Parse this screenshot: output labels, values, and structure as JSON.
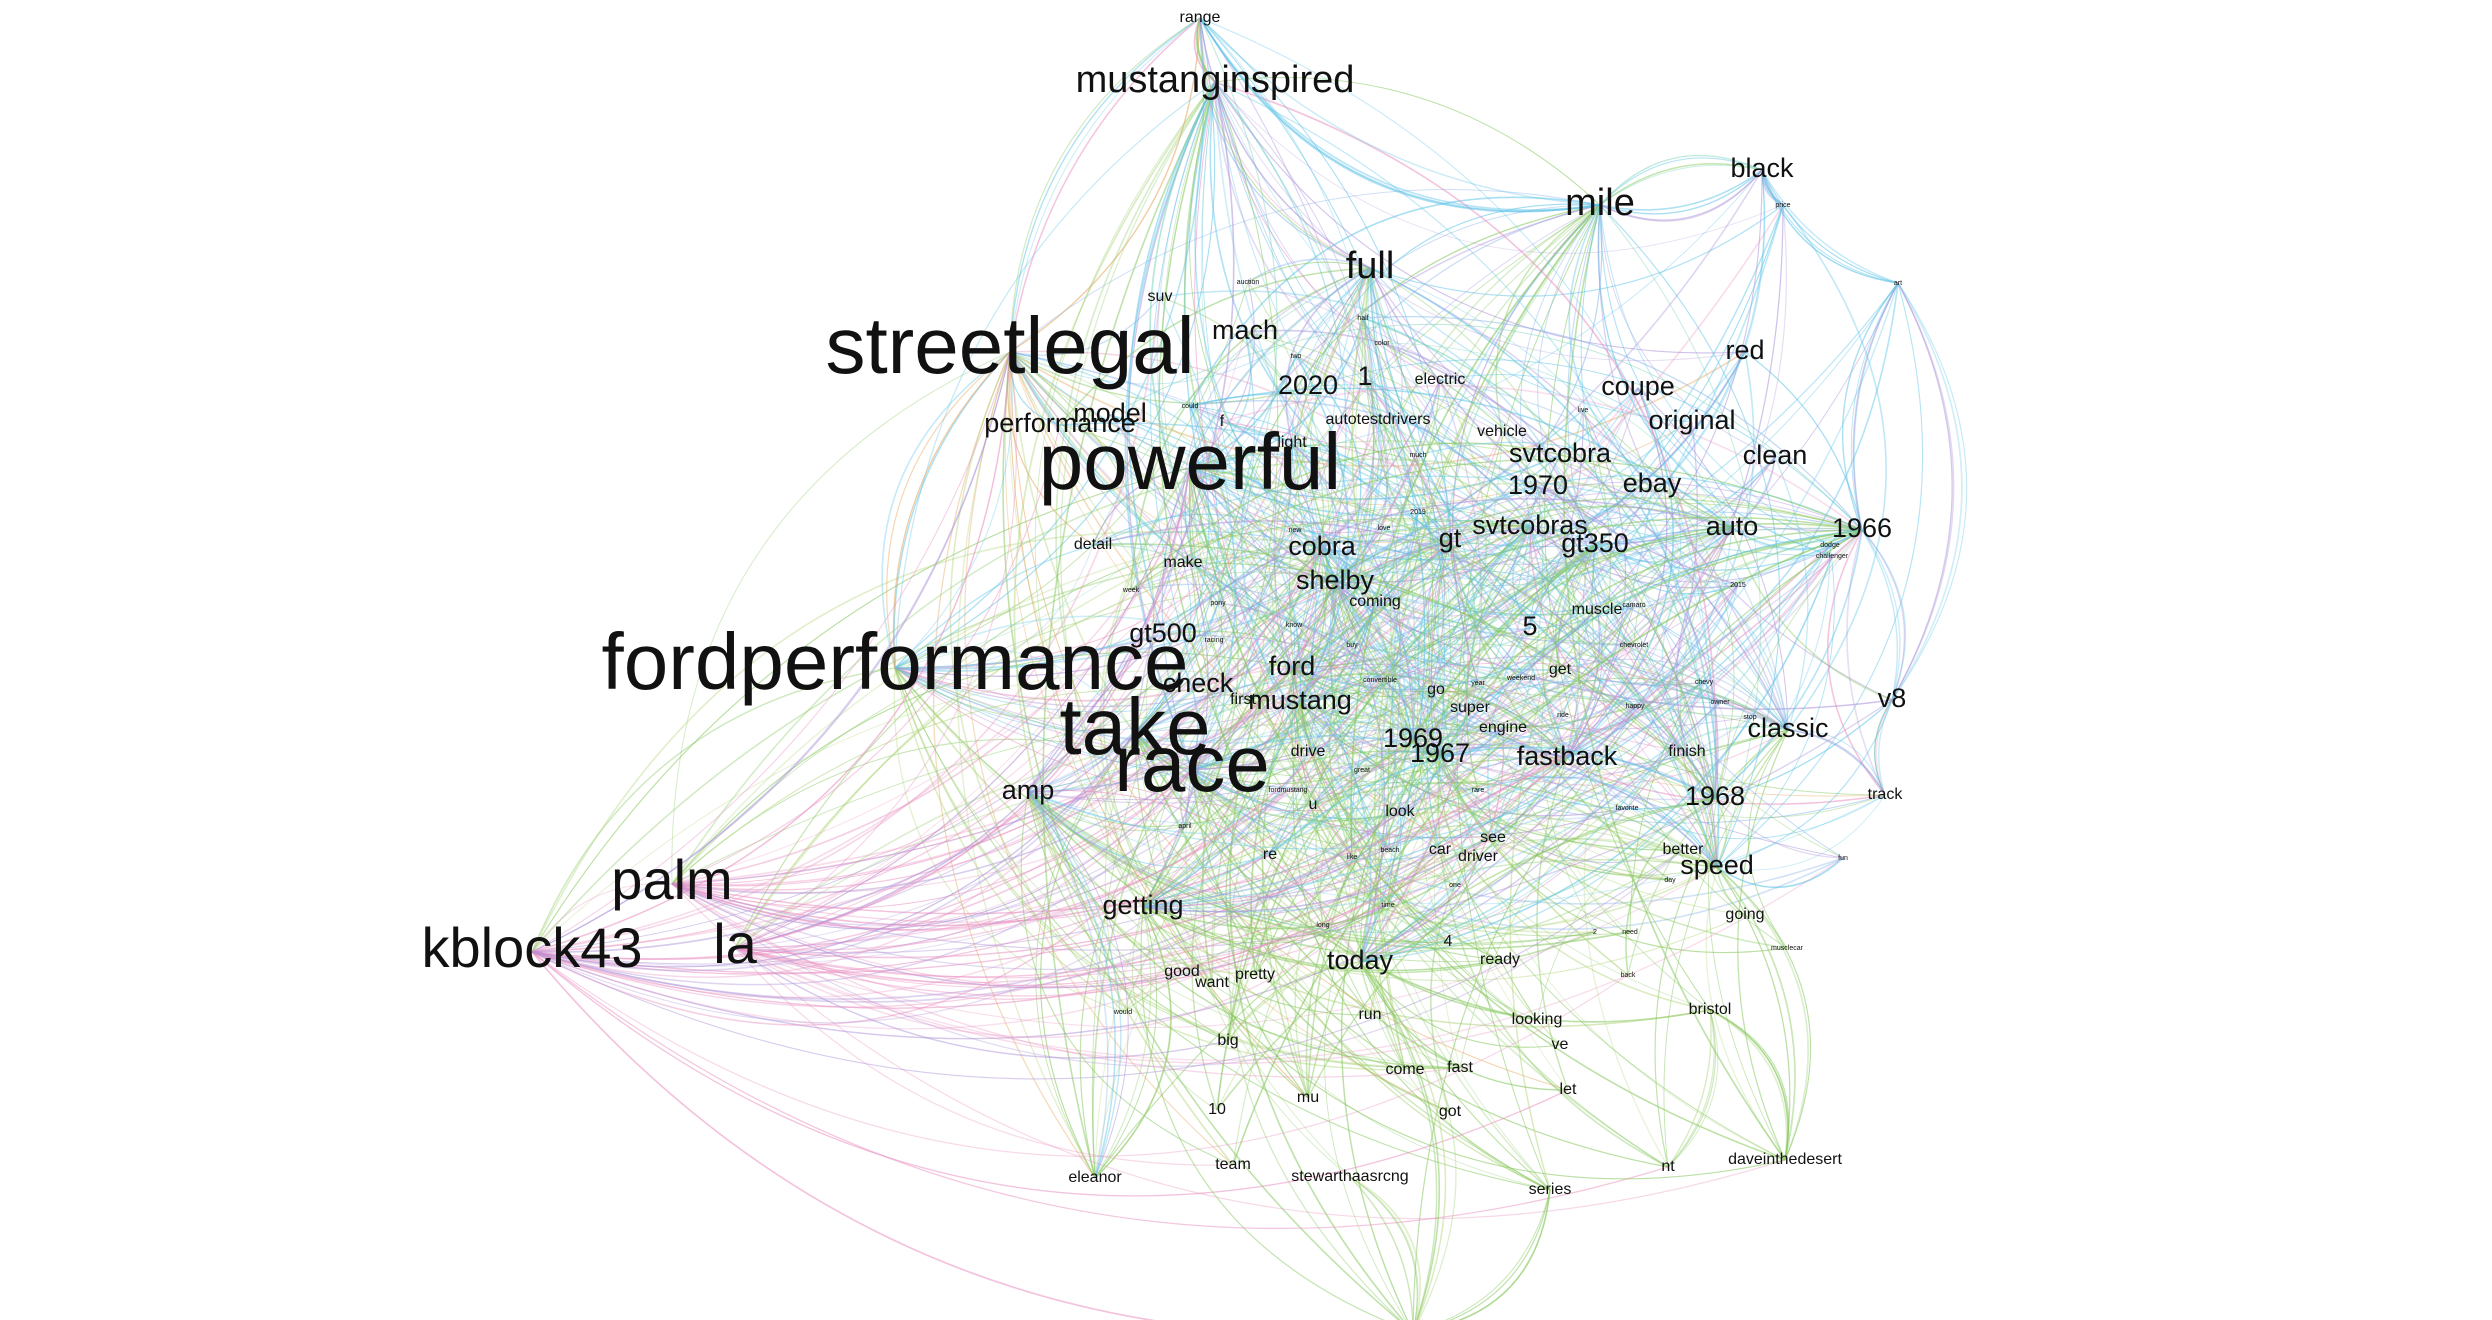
{
  "palette": [
    "#5bc2e7",
    "#82c65a",
    "#a98fd8",
    "#e98fc0",
    "#6fd0b0",
    "#e6a45a",
    "#8ab4e8",
    "#b0d47a"
  ],
  "words": [
    {
      "text": "streetlegal",
      "rank": 10
    },
    {
      "text": "powerful",
      "rank": 10
    },
    {
      "text": "fordperformance",
      "rank": 10
    },
    {
      "text": "take",
      "rank": 10
    },
    {
      "text": "race",
      "rank": 10
    },
    {
      "text": "palm",
      "rank": 8
    },
    {
      "text": "kblock43",
      "rank": 8
    },
    {
      "text": "la",
      "rank": 8
    },
    {
      "text": "mustanginspired",
      "rank": 6
    },
    {
      "text": "mile",
      "rank": 6
    },
    {
      "text": "full",
      "rank": 6
    },
    {
      "text": "range",
      "rank": 2
    },
    {
      "text": "black",
      "rank": 4
    },
    {
      "text": "mach",
      "rank": 4
    },
    {
      "text": "2020",
      "rank": 4
    },
    {
      "text": "1",
      "rank": 4
    },
    {
      "text": "model",
      "rank": 4
    },
    {
      "text": "performance",
      "rank": 4
    },
    {
      "text": "red",
      "rank": 4
    },
    {
      "text": "coupe",
      "rank": 4
    },
    {
      "text": "original",
      "rank": 4
    },
    {
      "text": "clean",
      "rank": 4
    },
    {
      "text": "svtcobra",
      "rank": 4
    },
    {
      "text": "1970",
      "rank": 4
    },
    {
      "text": "ebay",
      "rank": 4
    },
    {
      "text": "svtcobras",
      "rank": 4
    },
    {
      "text": "gt350",
      "rank": 4
    },
    {
      "text": "gt",
      "rank": 4
    },
    {
      "text": "auto",
      "rank": 4
    },
    {
      "text": "1966",
      "rank": 4
    },
    {
      "text": "cobra",
      "rank": 4
    },
    {
      "text": "shelby",
      "rank": 4
    },
    {
      "text": "5",
      "rank": 4
    },
    {
      "text": "gt500",
      "rank": 4
    },
    {
      "text": "ford",
      "rank": 4
    },
    {
      "text": "check",
      "rank": 4
    },
    {
      "text": "mustang",
      "rank": 4
    },
    {
      "text": "v8",
      "rank": 4
    },
    {
      "text": "classic",
      "rank": 4
    },
    {
      "text": "1969",
      "rank": 4
    },
    {
      "text": "1967",
      "rank": 4
    },
    {
      "text": "fastback",
      "rank": 4
    },
    {
      "text": "1968",
      "rank": 4
    },
    {
      "text": "amp",
      "rank": 4
    },
    {
      "text": "speed",
      "rank": 4
    },
    {
      "text": "getting",
      "rank": 4
    },
    {
      "text": "today",
      "rank": 4
    },
    {
      "text": "suv",
      "rank": 2
    },
    {
      "text": "electric",
      "rank": 2
    },
    {
      "text": "autotestdrivers",
      "rank": 2
    },
    {
      "text": "f",
      "rank": 2
    },
    {
      "text": "vehicle",
      "rank": 2
    },
    {
      "text": "detail",
      "rank": 2
    },
    {
      "text": "make",
      "rank": 2
    },
    {
      "text": "coming",
      "rank": 2
    },
    {
      "text": "muscle",
      "rank": 2
    },
    {
      "text": "get",
      "rank": 2
    },
    {
      "text": "go",
      "rank": 2
    },
    {
      "text": "super",
      "rank": 2
    },
    {
      "text": "engine",
      "rank": 2
    },
    {
      "text": "drive",
      "rank": 2
    },
    {
      "text": "finish",
      "rank": 2
    },
    {
      "text": "track",
      "rank": 2
    },
    {
      "text": "look",
      "rank": 2
    },
    {
      "text": "u",
      "rank": 2
    },
    {
      "text": "car",
      "rank": 2
    },
    {
      "text": "see",
      "rank": 2
    },
    {
      "text": "driver",
      "rank": 2
    },
    {
      "text": "better",
      "rank": 2
    },
    {
      "text": "re",
      "rank": 2
    },
    {
      "text": "going",
      "rank": 2
    },
    {
      "text": "good",
      "rank": 2
    },
    {
      "text": "want",
      "rank": 2
    },
    {
      "text": "pretty",
      "rank": 2
    },
    {
      "text": "4",
      "rank": 2
    },
    {
      "text": "ready",
      "rank": 2
    },
    {
      "text": "bristol",
      "rank": 2
    },
    {
      "text": "run",
      "rank": 2
    },
    {
      "text": "looking",
      "rank": 2
    },
    {
      "text": "big",
      "rank": 2
    },
    {
      "text": "ve",
      "rank": 2
    },
    {
      "text": "come",
      "rank": 2
    },
    {
      "text": "fast",
      "rank": 2
    },
    {
      "text": "10",
      "rank": 2
    },
    {
      "text": "mu",
      "rank": 2
    },
    {
      "text": "got",
      "rank": 2
    },
    {
      "text": "let",
      "rank": 2
    },
    {
      "text": "eleanor",
      "rank": 2
    },
    {
      "text": "team",
      "rank": 2
    },
    {
      "text": "stewarthaasrcng",
      "rank": 2
    },
    {
      "text": "series",
      "rank": 2
    },
    {
      "text": "nt",
      "rank": 2
    },
    {
      "text": "daveinthedesert",
      "rank": 2
    },
    {
      "text": "txmotorspeedway",
      "rank": 2
    },
    {
      "text": "light",
      "rank": 2
    },
    {
      "text": "first",
      "rank": 2
    },
    {
      "text": "auction",
      "rank": 1
    },
    {
      "text": "price",
      "rank": 1
    },
    {
      "text": "art",
      "rank": 1
    },
    {
      "text": "two",
      "rank": 1
    },
    {
      "text": "could",
      "rank": 1
    },
    {
      "text": "color",
      "rank": 1
    },
    {
      "text": "half",
      "rank": 1
    },
    {
      "text": "much",
      "rank": 1
    },
    {
      "text": "live",
      "rank": 1
    },
    {
      "text": "2019",
      "rank": 1
    },
    {
      "text": "love",
      "rank": 1
    },
    {
      "text": "new",
      "rank": 1
    },
    {
      "text": "dodge",
      "rank": 1
    },
    {
      "text": "challenger",
      "rank": 1
    },
    {
      "text": "2015",
      "rank": 1
    },
    {
      "text": "week",
      "rank": 1
    },
    {
      "text": "pony",
      "rank": 1
    },
    {
      "text": "know",
      "rank": 1
    },
    {
      "text": "racing",
      "rank": 1
    },
    {
      "text": "buy",
      "rank": 1
    },
    {
      "text": "camaro",
      "rank": 1
    },
    {
      "text": "chevrolet",
      "rank": 1
    },
    {
      "text": "year",
      "rank": 1
    },
    {
      "text": "weekend",
      "rank": 1
    },
    {
      "text": "convertible",
      "rank": 1
    },
    {
      "text": "chevy",
      "rank": 1
    },
    {
      "text": "happy",
      "rank": 1
    },
    {
      "text": "owner",
      "rank": 1
    },
    {
      "text": "ride",
      "rank": 1
    },
    {
      "text": "stop",
      "rank": 1
    },
    {
      "text": "great",
      "rank": 1
    },
    {
      "text": "fordmustang",
      "rank": 1
    },
    {
      "text": "rare",
      "rank": 1
    },
    {
      "text": "favorite",
      "rank": 1
    },
    {
      "text": "april",
      "rank": 1
    },
    {
      "text": "beach",
      "rank": 1
    },
    {
      "text": "like",
      "rank": 1
    },
    {
      "text": "day",
      "rank": 1
    },
    {
      "text": "fun",
      "rank": 1
    },
    {
      "text": "one",
      "rank": 1
    },
    {
      "text": "time",
      "rank": 1
    },
    {
      "text": "long",
      "rank": 1
    },
    {
      "text": "need",
      "rank": 1
    },
    {
      "text": "2",
      "rank": 1
    },
    {
      "text": "musclecar",
      "rank": 1
    },
    {
      "text": "back",
      "rank": 1
    },
    {
      "text": "would",
      "rank": 1
    }
  ]
}
